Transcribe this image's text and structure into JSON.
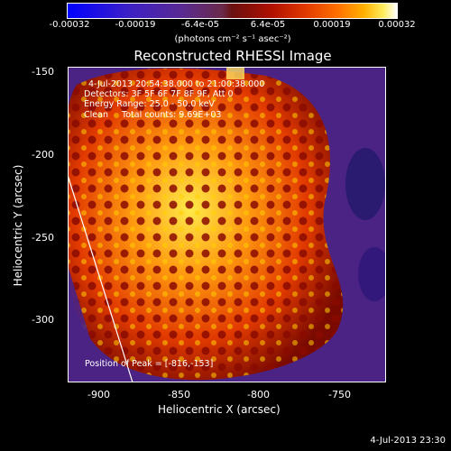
{
  "colorbar": {
    "ticks": [
      "-0.00032",
      "-0.00019",
      "-6.4e-05",
      "6.4e-05",
      "0.00019",
      "0.00032"
    ],
    "unit_label": "(photons cm⁻² s⁻¹ asec⁻²)",
    "colors": [
      "#0000ff",
      "#5a2a90",
      "#6b1010",
      "#e03800",
      "#ffb000",
      "#ffffff"
    ]
  },
  "plot": {
    "title": "Reconstructed RHESSI Image",
    "annotations": {
      "time_range": "4-Jul-2013 20:54:38.000 to 21:00:38.000",
      "detectors": "Detectors: 3F 5F 6F 7F 8F 9F, Att 0",
      "energy_range": "Energy Range: 25.0 - 50.0 keV",
      "method_counts": "Clean     Total counts: 9.69E+03",
      "peak_position": "Position of Peak = [-816,-153]"
    },
    "x_axis": {
      "title": "Heliocentric X (arcsec)",
      "ticks": [
        "-900",
        "-850",
        "-800",
        "-750"
      ]
    },
    "y_axis": {
      "title": "Heliocentric Y (arcsec)",
      "ticks": [
        "-150",
        "-200",
        "-250",
        "-300"
      ]
    }
  },
  "footer": {
    "timestamp": "4-Jul-2013 23:30"
  }
}
